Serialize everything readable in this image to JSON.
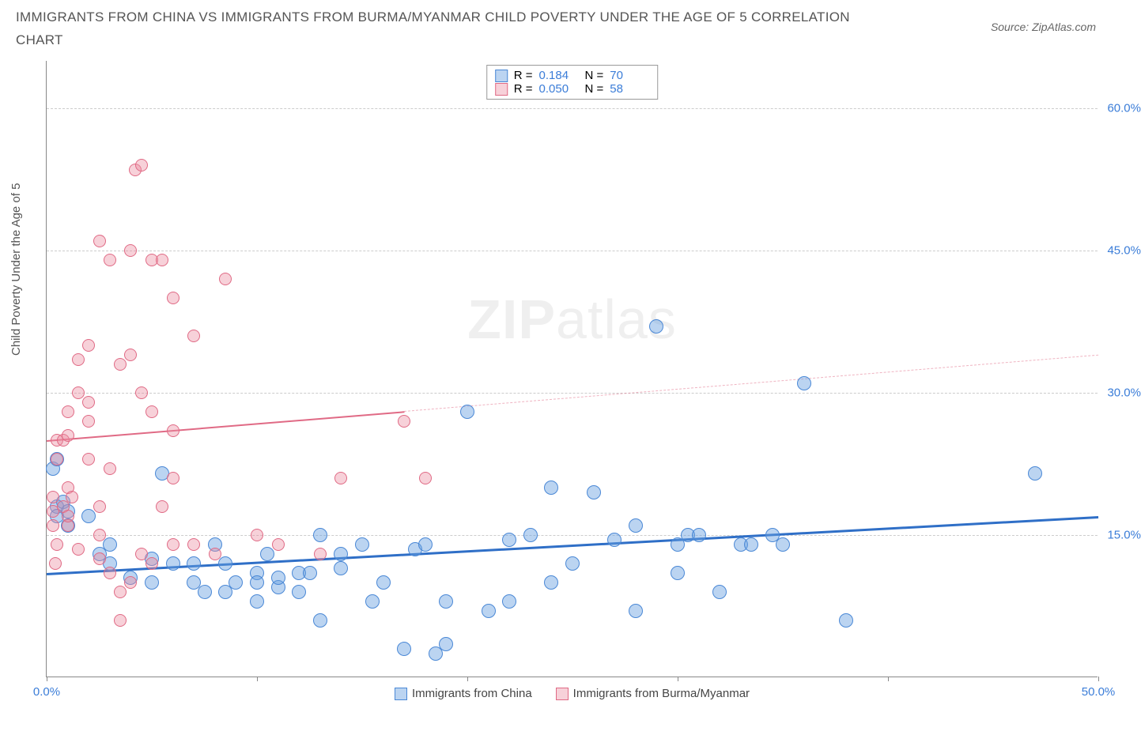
{
  "title": "IMMIGRANTS FROM CHINA VS IMMIGRANTS FROM BURMA/MYANMAR CHILD POVERTY UNDER THE AGE OF 5 CORRELATION CHART",
  "source": "Source: ZipAtlas.com",
  "y_axis_label": "Child Poverty Under the Age of 5",
  "watermark": {
    "bold": "ZIP",
    "rest": "atlas"
  },
  "chart": {
    "type": "scatter",
    "background_color": "#ffffff",
    "grid_color": "#cccccc",
    "axis_color": "#888888",
    "xlim": [
      0,
      50
    ],
    "ylim": [
      0,
      65
    ],
    "y_ticks": [
      {
        "value": 15,
        "label": "15.0%"
      },
      {
        "value": 30,
        "label": "30.0%"
      },
      {
        "value": 45,
        "label": "45.0%"
      },
      {
        "value": 60,
        "label": "60.0%"
      }
    ],
    "x_ticks": [
      {
        "value": 0,
        "label": "0.0%"
      },
      {
        "value": 10,
        "label": ""
      },
      {
        "value": 20,
        "label": ""
      },
      {
        "value": 30,
        "label": ""
      },
      {
        "value": 40,
        "label": ""
      },
      {
        "value": 50,
        "label": "50.0%"
      }
    ],
    "series": [
      {
        "name": "Immigrants from China",
        "marker_color": "rgba(105,160,225,0.45)",
        "marker_border": "#4a88d6",
        "marker_radius": 9,
        "r_label": "R =",
        "r_value": "0.184",
        "n_label": "N =",
        "n_value": "70",
        "trend": {
          "x1": 0,
          "y1": 11,
          "x2": 50,
          "y2": 17,
          "color": "#2f6fc7",
          "width": 3,
          "dash": false
        },
        "points": [
          [
            0.3,
            22
          ],
          [
            0.5,
            18
          ],
          [
            0.8,
            18.5
          ],
          [
            0.5,
            17
          ],
          [
            1,
            17.5
          ],
          [
            1,
            16
          ],
          [
            0.5,
            23
          ],
          [
            2,
            17
          ],
          [
            2.5,
            13
          ],
          [
            3,
            12
          ],
          [
            3,
            14
          ],
          [
            4,
            10.5
          ],
          [
            5,
            10
          ],
          [
            5,
            12.5
          ],
          [
            5.5,
            21.5
          ],
          [
            6,
            12
          ],
          [
            7,
            10
          ],
          [
            7,
            12
          ],
          [
            7.5,
            9
          ],
          [
            8,
            14
          ],
          [
            8.5,
            9
          ],
          [
            8.5,
            12
          ],
          [
            9,
            10
          ],
          [
            10,
            8
          ],
          [
            10,
            11
          ],
          [
            10,
            10
          ],
          [
            10.5,
            13
          ],
          [
            11,
            9.5
          ],
          [
            11,
            10.5
          ],
          [
            12,
            11
          ],
          [
            12.5,
            11
          ],
          [
            12,
            9
          ],
          [
            13,
            15
          ],
          [
            14,
            11.5
          ],
          [
            14,
            13
          ],
          [
            13,
            6
          ],
          [
            15,
            14
          ],
          [
            15.5,
            8
          ],
          [
            16,
            10
          ],
          [
            17,
            3
          ],
          [
            17.5,
            13.5
          ],
          [
            18,
            14
          ],
          [
            18.5,
            2.5
          ],
          [
            19,
            8
          ],
          [
            19,
            3.5
          ],
          [
            20,
            28
          ],
          [
            21,
            7
          ],
          [
            22,
            8
          ],
          [
            22,
            14.5
          ],
          [
            23,
            15
          ],
          [
            24,
            10
          ],
          [
            24,
            20
          ],
          [
            25,
            12
          ],
          [
            26,
            19.5
          ],
          [
            27,
            14.5
          ],
          [
            28,
            7
          ],
          [
            28,
            16
          ],
          [
            29,
            37
          ],
          [
            30,
            11
          ],
          [
            30,
            14
          ],
          [
            30.5,
            15
          ],
          [
            31,
            15
          ],
          [
            32,
            9
          ],
          [
            33,
            14
          ],
          [
            33.5,
            14
          ],
          [
            34.5,
            15
          ],
          [
            35,
            14
          ],
          [
            36,
            31
          ],
          [
            38,
            6
          ],
          [
            47,
            21.5
          ]
        ]
      },
      {
        "name": "Immigrants from Burma/Myanmar",
        "marker_color": "rgba(235,140,160,0.40)",
        "marker_border": "#e06a85",
        "marker_radius": 8,
        "r_label": "R =",
        "r_value": "0.050",
        "n_label": "N =",
        "n_value": "58",
        "trend": {
          "x1": 0,
          "y1": 25,
          "x2": 50,
          "y2": 34,
          "color": "#e06a85",
          "width": 2.5,
          "dash": false,
          "dash_from": 17
        },
        "points": [
          [
            0.3,
            16
          ],
          [
            0.3,
            17.5
          ],
          [
            0.3,
            19
          ],
          [
            0.4,
            12
          ],
          [
            0.5,
            14
          ],
          [
            0.5,
            23
          ],
          [
            0.5,
            25
          ],
          [
            0.8,
            18
          ],
          [
            0.8,
            25
          ],
          [
            1,
            20
          ],
          [
            1,
            25.5
          ],
          [
            1,
            28
          ],
          [
            1,
            16
          ],
          [
            1,
            17
          ],
          [
            1.2,
            19
          ],
          [
            1.5,
            30
          ],
          [
            1.5,
            33.5
          ],
          [
            1.5,
            13.5
          ],
          [
            2,
            23
          ],
          [
            2,
            27
          ],
          [
            2,
            29
          ],
          [
            2,
            35
          ],
          [
            2.5,
            18
          ],
          [
            2.5,
            15
          ],
          [
            2.5,
            12.5
          ],
          [
            2.5,
            46
          ],
          [
            3,
            22
          ],
          [
            3,
            44
          ],
          [
            3,
            11
          ],
          [
            3.5,
            33
          ],
          [
            3.5,
            6
          ],
          [
            3.5,
            9
          ],
          [
            4,
            34
          ],
          [
            4,
            10
          ],
          [
            4,
            45
          ],
          [
            4.2,
            53.5
          ],
          [
            4.5,
            13
          ],
          [
            4.5,
            54
          ],
          [
            4.5,
            30
          ],
          [
            5,
            44
          ],
          [
            5,
            28
          ],
          [
            5,
            12
          ],
          [
            5.5,
            18
          ],
          [
            5.5,
            44
          ],
          [
            6,
            14
          ],
          [
            6,
            40
          ],
          [
            6,
            21
          ],
          [
            6,
            26
          ],
          [
            7,
            36
          ],
          [
            7,
            14
          ],
          [
            8,
            13
          ],
          [
            8.5,
            42
          ],
          [
            10,
            15
          ],
          [
            11,
            14
          ],
          [
            13,
            13
          ],
          [
            14,
            21
          ],
          [
            17,
            27
          ],
          [
            18,
            21
          ]
        ]
      }
    ]
  },
  "legend_bottom": [
    {
      "swatch_fill": "rgba(105,160,225,0.45)",
      "swatch_border": "#4a88d6",
      "label": "Immigrants from China"
    },
    {
      "swatch_fill": "rgba(235,140,160,0.40)",
      "swatch_border": "#e06a85",
      "label": "Immigrants from Burma/Myanmar"
    }
  ]
}
